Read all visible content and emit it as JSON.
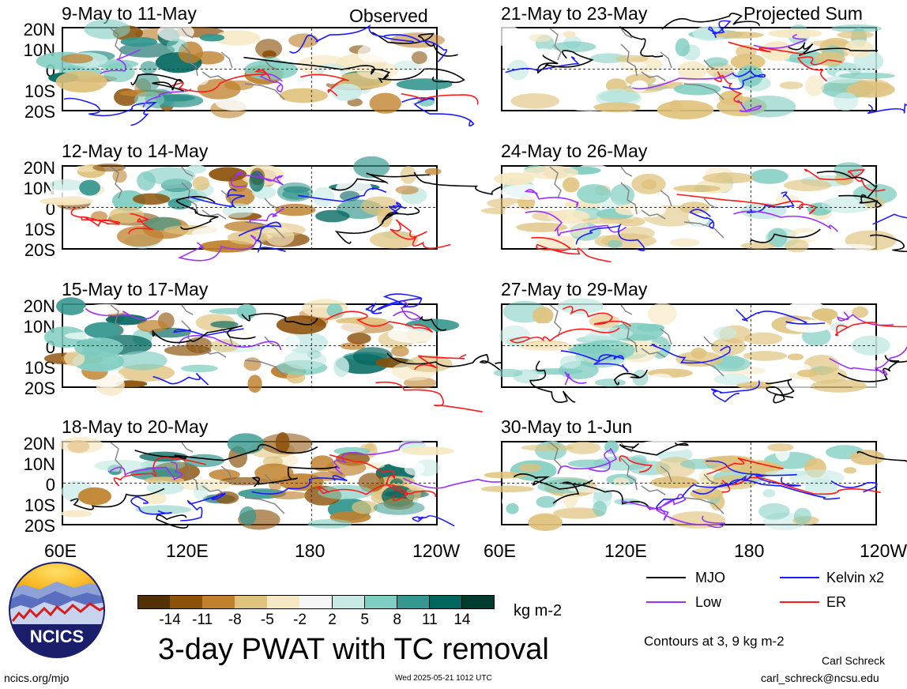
{
  "headers": {
    "left": "Observed",
    "right": "Projected Sum"
  },
  "panels": {
    "left": [
      "9-May to 11-May",
      "12-May to 14-May",
      "15-May to 17-May",
      "18-May to 20-May"
    ],
    "right": [
      "21-May to 23-May",
      "24-May to 26-May",
      "27-May to 29-May",
      "30-May to 1-Jun"
    ]
  },
  "lat_ticks": [
    "20N",
    "10N",
    "0",
    "10S",
    "20S"
  ],
  "lon_ticks_left": [
    "60E",
    "120E",
    "180",
    "120W"
  ],
  "lon_ticks_right": [
    "60E",
    "120E",
    "180",
    "120W"
  ],
  "colorbar": {
    "labels": [
      "-14",
      "-11",
      "-8",
      "-5",
      "-2",
      "2",
      "5",
      "8",
      "11",
      "14"
    ],
    "colors": [
      "#543005",
      "#8c510a",
      "#bf812d",
      "#dfc27d",
      "#f6e8c3",
      "#f5f5f5",
      "#c7eae5",
      "#80cdc1",
      "#35978f",
      "#01665e",
      "#003c30"
    ],
    "units": "kg m-2"
  },
  "legend": {
    "mjo": "MJO",
    "kelvin": "Kelvin x2",
    "low": "Low",
    "er": "ER",
    "colors": {
      "mjo": "#000000",
      "kelvin": "#1a1aff",
      "low": "#9b30ff",
      "er": "#ff1a1a"
    },
    "contours_note": "Contours at 3, 9 kg m-2"
  },
  "title": "3-day PWAT with TC removal",
  "logo_text": "NCICS",
  "footer": {
    "url": "ncics.org/mjo",
    "timestamp": "Wed 2025-05-21 1012 UTC",
    "author": "Carl Schreck",
    "email": "carl_schreck@ncsu.edu"
  }
}
